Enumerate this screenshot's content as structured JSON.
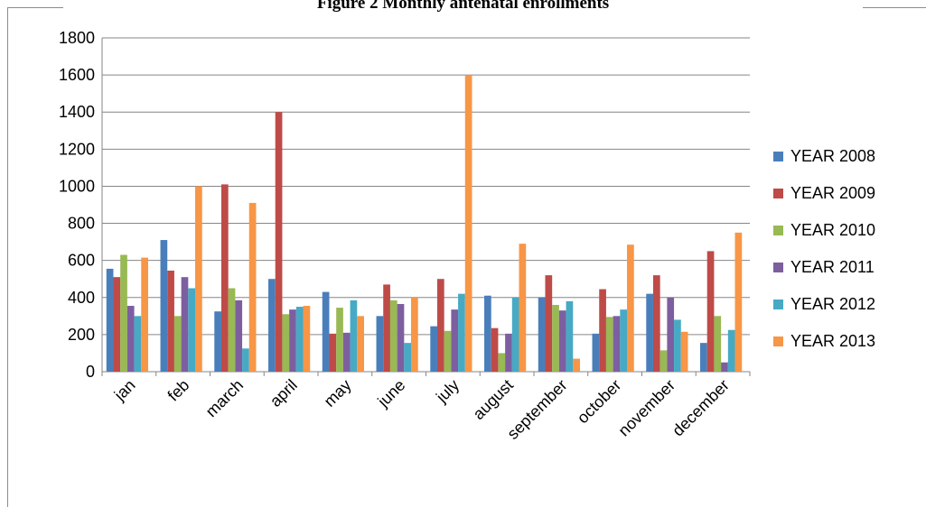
{
  "chart_data": {
    "type": "bar",
    "title": "Figure 2 Monthly antenatal enrollments",
    "xlabel": "",
    "ylabel": "",
    "ylim": [
      0,
      1800
    ],
    "yticks": [
      0,
      200,
      400,
      600,
      800,
      1000,
      1200,
      1400,
      1600,
      1800
    ],
    "grid": true,
    "legend": "right",
    "categories": [
      "jan",
      "feb",
      "march",
      "april",
      "may",
      "june",
      "july",
      "august",
      "september",
      "october",
      "november",
      "december"
    ],
    "series": [
      {
        "name": "YEAR 2008",
        "color": "#4a7ebb",
        "values": [
          555,
          710,
          325,
          500,
          430,
          300,
          245,
          410,
          400,
          205,
          420,
          155
        ]
      },
      {
        "name": "YEAR 2009",
        "color": "#be4b48",
        "values": [
          510,
          545,
          1010,
          1400,
          205,
          470,
          500,
          235,
          520,
          445,
          520,
          650
        ]
      },
      {
        "name": "YEAR 2010",
        "color": "#98b954",
        "values": [
          630,
          300,
          450,
          310,
          345,
          385,
          220,
          100,
          360,
          295,
          115,
          300
        ]
      },
      {
        "name": "YEAR 2011",
        "color": "#7d5fa0",
        "values": [
          355,
          510,
          385,
          335,
          210,
          365,
          335,
          205,
          330,
          300,
          400,
          50
        ]
      },
      {
        "name": "YEAR 2012",
        "color": "#46aac5",
        "values": [
          300,
          450,
          125,
          350,
          385,
          155,
          420,
          400,
          380,
          335,
          280,
          225
        ]
      },
      {
        "name": "YEAR 2013",
        "color": "#f79646",
        "values": [
          615,
          1000,
          910,
          355,
          300,
          400,
          1600,
          690,
          70,
          685,
          215,
          750
        ]
      }
    ]
  }
}
